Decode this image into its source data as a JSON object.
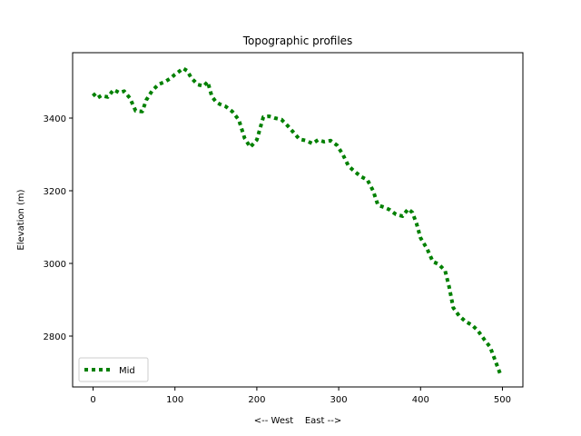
{
  "chart_data": {
    "type": "line",
    "title": "Topographic profiles",
    "xlabel": "<-- West    East -->",
    "ylabel": "Elevation (m)",
    "xlim": [
      -25,
      525
    ],
    "ylim": [
      2660,
      3580
    ],
    "xticks": [
      0,
      100,
      200,
      300,
      400,
      500
    ],
    "yticks": [
      2800,
      3000,
      3200,
      3400
    ],
    "grid": false,
    "legend_position": "lower-left",
    "series": [
      {
        "name": "Mid",
        "color": "#008000",
        "line_style": "dotted",
        "x": [
          0,
          5,
          10,
          18,
          25,
          32,
          38,
          45,
          52,
          60,
          65,
          72,
          80,
          88,
          95,
          100,
          105,
          110,
          115,
          120,
          128,
          135,
          140,
          145,
          150,
          155,
          162,
          170,
          178,
          185,
          192,
          200,
          208,
          215,
          222,
          230,
          238,
          245,
          252,
          260,
          268,
          275,
          282,
          290,
          298,
          305,
          312,
          320,
          328,
          335,
          342,
          348,
          355,
          362,
          370,
          378,
          385,
          390,
          395,
          400,
          408,
          415,
          422,
          430,
          435,
          440,
          447,
          455,
          463,
          470,
          478,
          485,
          490,
          497
        ],
        "y": [
          3468,
          3455,
          3462,
          3458,
          3478,
          3470,
          3474,
          3455,
          3420,
          3418,
          3450,
          3475,
          3493,
          3500,
          3510,
          3520,
          3528,
          3537,
          3530,
          3510,
          3492,
          3488,
          3500,
          3460,
          3445,
          3438,
          3432,
          3418,
          3395,
          3345,
          3320,
          3340,
          3403,
          3405,
          3400,
          3396,
          3378,
          3360,
          3342,
          3338,
          3330,
          3340,
          3335,
          3338,
          3325,
          3300,
          3268,
          3252,
          3238,
          3230,
          3200,
          3160,
          3155,
          3148,
          3135,
          3130,
          3150,
          3140,
          3110,
          3070,
          3040,
          3005,
          2998,
          2980,
          2935,
          2878,
          2856,
          2840,
          2830,
          2815,
          2790,
          2770,
          2740,
          2698
        ]
      }
    ]
  }
}
